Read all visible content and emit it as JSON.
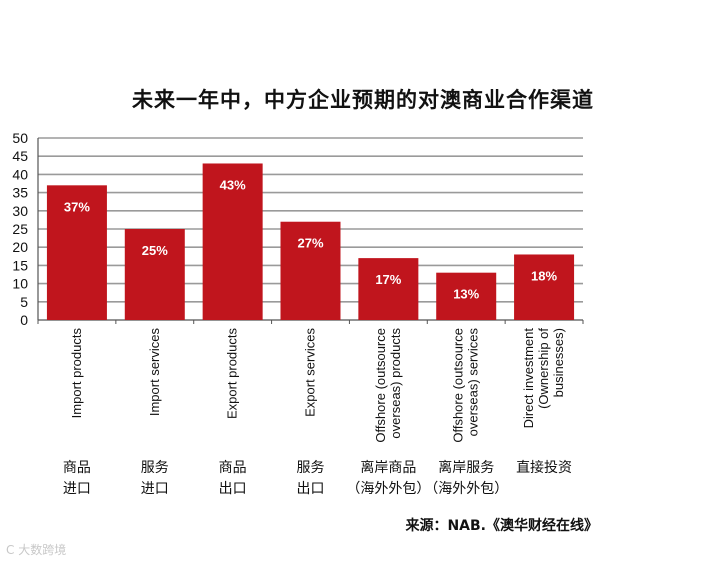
{
  "title": "未来一年中，中方企业预期的对澳商业合作渠道",
  "source": "来源：NAB.《澳华财经在线》",
  "watermark": "C 大数跨境",
  "colors": {
    "bar": "#c0151d",
    "grid": "#9a9a9a",
    "axis": "#555555",
    "bar_label": "#ffffff"
  },
  "cn_labels": [
    "商品\n进口",
    "服务\n进口",
    "商品\n出口",
    "服务\n出口",
    "离岸商品\n（海外外包）",
    "离岸服务\n（海外外包）",
    "直接投资"
  ],
  "chart_data": {
    "type": "bar",
    "title": "未来一年中，中方企业预期的对澳商业合作渠道",
    "categories": [
      [
        "Import products"
      ],
      [
        "Import services"
      ],
      [
        "Export products"
      ],
      [
        "Export services"
      ],
      [
        "Offshore (outsource",
        "overseas) products"
      ],
      [
        "Offshore (outsource",
        "overseas) services"
      ],
      [
        "Direct investment",
        "(Ownership of",
        "businesses)"
      ]
    ],
    "values": [
      37,
      25,
      43,
      27,
      17,
      13,
      18
    ],
    "value_labels": [
      "37%",
      "25%",
      "43%",
      "27%",
      "17%",
      "13%",
      "18%"
    ],
    "yticks": [
      0,
      5,
      10,
      15,
      20,
      25,
      30,
      35,
      40,
      45,
      50
    ],
    "ylim": [
      0,
      50
    ],
    "grid": true,
    "xlabel": "",
    "ylabel": ""
  }
}
